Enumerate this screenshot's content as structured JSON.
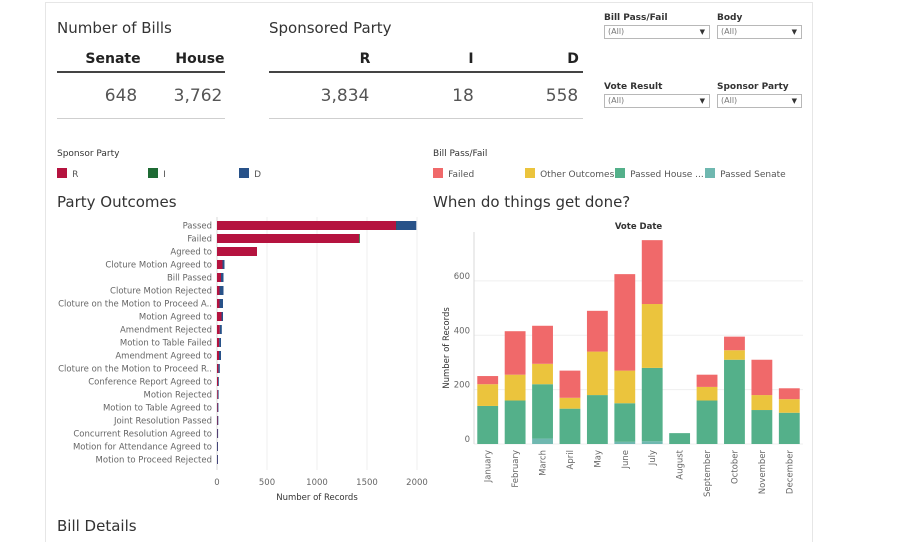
{
  "kpi_bills": {
    "title": "Number of Bills",
    "headers": [
      "Senate",
      "House"
    ],
    "values": [
      "648",
      "3,762"
    ]
  },
  "kpi_party": {
    "title": "Sponsored Party",
    "headers": [
      "R",
      "I",
      "D"
    ],
    "values": [
      "3,834",
      "18",
      "558"
    ]
  },
  "filters": [
    {
      "label": "Bill Pass/Fail",
      "value": "(All)"
    },
    {
      "label": "Body",
      "value": "(All)"
    },
    {
      "label": "Vote Result",
      "value": "(All)"
    },
    {
      "label": "Sponsor Party",
      "value": "(All)"
    }
  ],
  "legend_party": {
    "title": "Sponsor Party",
    "items": [
      {
        "label": "R",
        "color": "#b5133f"
      },
      {
        "label": "I",
        "color": "#1e6b34"
      },
      {
        "label": "D",
        "color": "#285289"
      }
    ]
  },
  "legend_outcome": {
    "title": "Bill Pass/Fail",
    "items": [
      {
        "label": "Failed",
        "color": "#f0696a"
      },
      {
        "label": "Other Outcomes",
        "color": "#ebc43d"
      },
      {
        "label": "Passed House ...",
        "color": "#54b08a"
      },
      {
        "label": "Passed Senate",
        "color": "#6fb8b0"
      }
    ]
  },
  "party_outcomes_title": "Party Outcomes",
  "when_title": "When do things get done?",
  "bill_details_title": "Bill Details",
  "chart_data": [
    {
      "type": "bar",
      "orientation": "horizontal",
      "stacked": true,
      "xlabel": "Number of Records",
      "xlim": [
        0,
        2000
      ],
      "xticks": [
        0,
        500,
        1000,
        1500,
        2000
      ],
      "categories": [
        "Passed",
        "Failed",
        "Agreed to",
        "Cloture Motion Agreed to",
        "Bill Passed",
        "Cloture Motion Rejected",
        "Cloture on the Motion to Proceed A..",
        "Motion Agreed to",
        "Amendment Rejected",
        "Motion to Table Failed",
        "Amendment Agreed to",
        "Cloture on the Motion to Proceed R..",
        "Conference Report Agreed to",
        "Motion Rejected",
        "Motion to Table Agreed to",
        "Joint Resolution Passed",
        "Concurrent Resolution Agreed to",
        "Motion for Attendance Agreed to",
        "Motion to Proceed Rejected"
      ],
      "series": [
        {
          "name": "R",
          "color": "#b5133f",
          "values": [
            1790,
            1420,
            400,
            55,
            40,
            25,
            25,
            45,
            28,
            22,
            20,
            14,
            10,
            8,
            6,
            5,
            3,
            2,
            2
          ]
        },
        {
          "name": "I",
          "color": "#1e6b34",
          "values": [
            3,
            2,
            0,
            0,
            0,
            0,
            0,
            0,
            0,
            0,
            0,
            0,
            0,
            0,
            0,
            0,
            0,
            0,
            0
          ]
        },
        {
          "name": "D",
          "color": "#285289",
          "values": [
            200,
            0,
            0,
            20,
            25,
            40,
            35,
            15,
            20,
            18,
            20,
            14,
            5,
            4,
            4,
            3,
            2,
            1,
            1
          ]
        }
      ]
    },
    {
      "type": "bar",
      "stacked": true,
      "title": "Vote Date",
      "ylabel": "Number of Records",
      "ylim": [
        0,
        780
      ],
      "yticks": [
        0,
        200,
        400,
        600
      ],
      "categories": [
        "January",
        "February",
        "March",
        "April",
        "May",
        "June",
        "July",
        "August",
        "September",
        "October",
        "November",
        "December"
      ],
      "series": [
        {
          "name": "Passed Senate",
          "color": "#6fb8b0",
          "values": [
            0,
            0,
            20,
            0,
            0,
            8,
            10,
            0,
            0,
            0,
            0,
            0
          ]
        },
        {
          "name": "Passed House ...",
          "color": "#54b08a",
          "values": [
            140,
            160,
            200,
            130,
            180,
            142,
            270,
            40,
            160,
            310,
            125,
            115
          ]
        },
        {
          "name": "Other Outcomes",
          "color": "#ebc43d",
          "values": [
            80,
            95,
            75,
            40,
            160,
            120,
            235,
            0,
            50,
            35,
            55,
            50
          ]
        },
        {
          "name": "Failed",
          "color": "#f0696a",
          "values": [
            30,
            160,
            140,
            100,
            150,
            355,
            235,
            0,
            45,
            50,
            130,
            40
          ]
        }
      ]
    }
  ]
}
